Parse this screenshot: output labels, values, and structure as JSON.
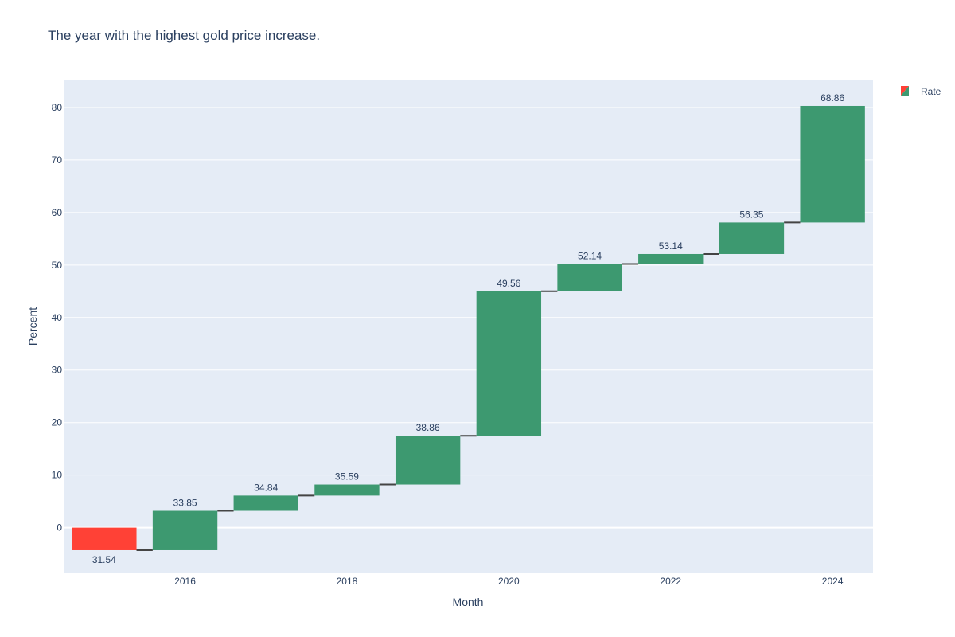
{
  "chart_data": {
    "type": "waterfall",
    "title": "The year with the highest gold price increase.",
    "xlabel": "Month",
    "ylabel": "Percent",
    "ylim": [
      -8.7,
      85.3
    ],
    "x_tick_labels": [
      "2016",
      "2018",
      "2020",
      "2022",
      "2024"
    ],
    "x_tick_positions": [
      2016,
      2018,
      2020,
      2022,
      2024
    ],
    "y_ticks": [
      0,
      10,
      20,
      30,
      40,
      50,
      60,
      70,
      80
    ],
    "legend": {
      "entries": [
        "Rate"
      ],
      "position": "top-right"
    },
    "grid": true,
    "colors": {
      "increase": "#3d9970",
      "decrease": "#ff4136",
      "plot_bg": "#e5ecf6",
      "connector": "#444444"
    },
    "x": [
      2015,
      2016,
      2017,
      2018,
      2019,
      2020,
      2021,
      2022,
      2023,
      2024
    ],
    "series": [
      {
        "name": "Rate",
        "base": [
          0,
          -4.3,
          3.2,
          6.1,
          8.2,
          17.5,
          45.0,
          50.2,
          52.1,
          58.1
        ],
        "end": [
          -4.3,
          3.2,
          6.1,
          8.2,
          17.5,
          45.0,
          50.2,
          52.1,
          58.1,
          80.3
        ],
        "text": [
          "31.54",
          "33.85",
          "34.84",
          "35.59",
          "38.86",
          "49.56",
          "52.14",
          "53.14",
          "56.35",
          "68.86"
        ]
      }
    ]
  }
}
